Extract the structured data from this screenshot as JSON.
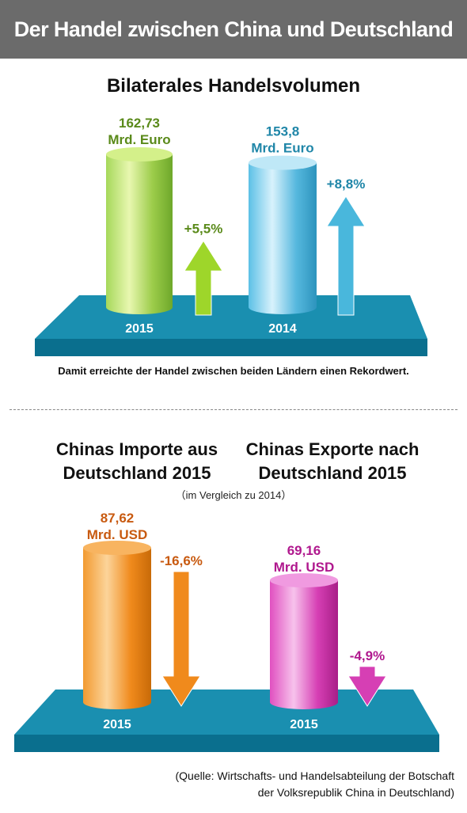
{
  "header": {
    "title": "Der Handel zwischen China und Deutschland"
  },
  "section1": {
    "title": "Bilaterales Handelsvolumen",
    "note": "Damit erreichte der Handel zwischen beiden Ländern einen Rekordwert."
  },
  "section2": {
    "title_imports_line1": "Chinas Importe aus",
    "title_imports_line2": "Deutschland 2015",
    "title_exports_line1": "Chinas Exporte nach",
    "title_exports_line2": "Deutschland 2015",
    "comparison": "（im Vergleich zu 2014）"
  },
  "source": {
    "line1": "(Quelle: Wirtschafts- und Handelsabteilung der Botschaft",
    "line2": "der Volksrepublik China in Deutschland)"
  },
  "colors": {
    "banner": "#6b6b6b",
    "platform_top": "#1a8fb0",
    "platform_front": "#0a6f8e",
    "green": "#8cc63f",
    "green_text": "#5a8a1a",
    "blue": "#4db6dc",
    "blue_text": "#1f86a8",
    "orange": "#f08a1c",
    "orange_text": "#c85a10",
    "magenta": "#d63fb4",
    "magenta_text": "#b0188e"
  },
  "chart_data": [
    {
      "type": "bar",
      "title": "Bilaterales Handelsvolumen",
      "categories": [
        "2015",
        "2014"
      ],
      "values": [
        162.73,
        153.8
      ],
      "value_labels": [
        "162,73",
        "153,8"
      ],
      "unit_label": "Mrd. Euro",
      "changes": [
        5.5,
        8.8
      ],
      "change_labels": [
        "+5,5%",
        "+8,8%"
      ]
    },
    {
      "type": "bar",
      "categories": [
        "2015",
        "2015"
      ],
      "series_titles": [
        "Chinas Importe aus Deutschland 2015",
        "Chinas Exporte nach Deutschland 2015"
      ],
      "values": [
        87.62,
        69.16
      ],
      "value_labels": [
        "87,62",
        "69,16"
      ],
      "unit_label": "Mrd. USD",
      "changes": [
        -16.6,
        -4.9
      ],
      "change_labels": [
        "-16,6%",
        "-4,9%"
      ]
    }
  ]
}
